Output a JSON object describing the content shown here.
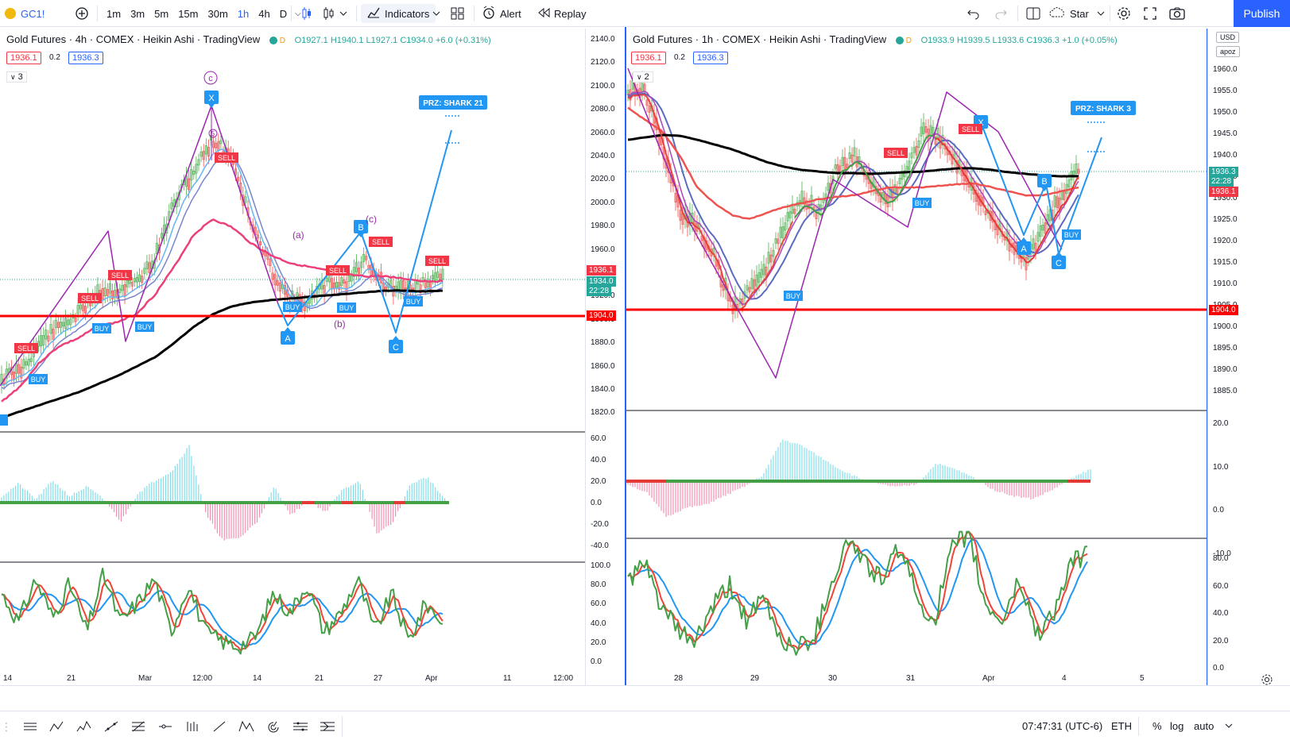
{
  "toolbar": {
    "symbol": "GC1!",
    "timeframes": [
      "1m",
      "3m",
      "5m",
      "15m",
      "30m",
      "1h",
      "4h",
      "D"
    ],
    "active_timeframe": "1h",
    "indicators_label": "Indicators",
    "alert_label": "Alert",
    "replay_label": "Replay",
    "star_label": "Star",
    "publish_label": "Publish"
  },
  "left_pane": {
    "title": "Gold Futures · 4h · COMEX · Heikin Ashi · TradingView",
    "ohlc": "O1927.1 H1940.1 L1927.1 C1934.0 +6.0 (+0.31%)",
    "bid": "1936.1",
    "spread": "0.2",
    "ask": "1936.3",
    "count": "3",
    "price_axis": [
      "2140.0",
      "2120.0",
      "2100.0",
      "2080.0",
      "2060.0",
      "2040.0",
      "2020.0",
      "2000.0",
      "1980.0",
      "1960.0",
      "1940.0",
      "1920.0",
      "1900.0",
      "1880.0",
      "1860.0",
      "1840.0",
      "1820.0"
    ],
    "macd_axis": [
      "60.0",
      "40.0",
      "20.0",
      "0.0",
      "-20.0",
      "-40.0"
    ],
    "stoch_axis": [
      "100.0",
      "80.0",
      "60.0",
      "40.0",
      "20.0",
      "0.0"
    ],
    "time_axis": [
      "14",
      "21",
      "Mar",
      "12:00",
      "14",
      "21",
      "27",
      "Apr",
      "11",
      "12:00"
    ],
    "tags": {
      "bid": "1936.1",
      "last": "1934.0",
      "countdown": "22:28",
      "level": "1904.0"
    },
    "prz_label": "PRZ: SHARK 21",
    "points": {
      "x": "X",
      "a": "A",
      "b": "B",
      "c": "C"
    },
    "waves": {
      "c_circle": "c",
      "five": "5",
      "a": "(a)",
      "b": "(b)",
      "c": "(c)"
    },
    "signals": {
      "buy": "BUY",
      "sell": "SELL"
    }
  },
  "right_pane": {
    "title": "Gold Futures · 1h · COMEX · Heikin Ashi · TradingView",
    "ohlc": "O1933.9 H1939.5 L1933.6 C1936.3 +1.0 (+0.05%)",
    "bid": "1936.1",
    "spread": "0.2",
    "ask": "1936.3",
    "count": "2",
    "currency": "USD",
    "scale_mode": "apoz",
    "price_axis": [
      "1960.0",
      "1955.0",
      "1950.0",
      "1945.0",
      "1940.0",
      "1935.0",
      "1930.0",
      "1925.0",
      "1920.0",
      "1915.0",
      "1910.0",
      "1905.0",
      "1900.0",
      "1895.0",
      "1890.0",
      "1885.0"
    ],
    "macd_axis": [
      "20.0",
      "10.0",
      "0.0",
      "-10.0"
    ],
    "stoch_axis": [
      "80.0",
      "60.0",
      "40.0",
      "20.0",
      "0.0"
    ],
    "time_axis": [
      "28",
      "29",
      "30",
      "31",
      "Apr",
      "4",
      "5"
    ],
    "tags": {
      "ask": "1936.3",
      "countdown": "22:28",
      "bid": "1936.1",
      "level": "1904.0"
    },
    "prz_label": "PRZ: SHARK 3",
    "points": {
      "x": "X",
      "a": "A",
      "b": "B",
      "c": "C"
    },
    "signals": {
      "buy": "BUY",
      "sell": "SELL"
    }
  },
  "status_bar": {
    "clock": "07:47:31 (UTC-6)",
    "session": "ETH",
    "percent": "%",
    "log": "log",
    "auto": "auto"
  },
  "colors": {
    "accent": "#2962ff",
    "level": "#ff0000",
    "pattern": "#2196f3",
    "wave": "#9c27b0",
    "buy": "#2196f3",
    "sell": "#f23645"
  },
  "icons": [
    "add-symbol-icon",
    "candle-type-icon",
    "indicators-icon",
    "layout-icon",
    "alert-icon",
    "replay-icon",
    "undo-icon",
    "redo-icon",
    "split-icon",
    "cloud-icon",
    "settings-icon",
    "fullscreen-icon",
    "snapshot-icon"
  ]
}
